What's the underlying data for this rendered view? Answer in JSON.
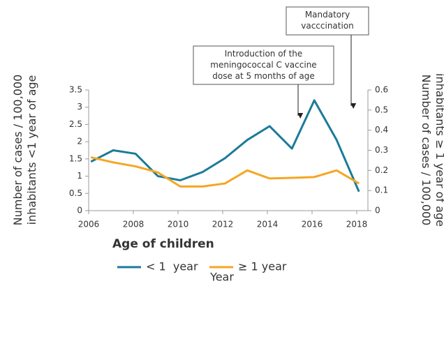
{
  "chart_data": {
    "type": "line",
    "x": [
      2006.1,
      2007.1,
      2008.1,
      2009.1,
      2010.1,
      2011.1,
      2012.1,
      2013.1,
      2014.1,
      2015.1,
      2016.1,
      2017.1,
      2018.1
    ],
    "series": [
      {
        "name": "< 1  year",
        "color": "#1b7b98",
        "values": [
          1.42,
          1.75,
          1.65,
          1.0,
          0.88,
          1.12,
          1.52,
          2.05,
          2.45,
          1.8,
          3.2,
          2.05,
          0.55
        ]
      },
      {
        "name": "≥ 1 year",
        "color": "#f5a623",
        "axis": "y2",
        "values": [
          0.265,
          0.24,
          0.22,
          0.19,
          0.12,
          0.12,
          0.135,
          0.2,
          0.16,
          0.163,
          0.167,
          0.2,
          0.135
        ]
      }
    ],
    "xlim": [
      2006,
      2018.5
    ],
    "xticks": [
      2006,
      2008,
      2010,
      2012,
      2014,
      2016,
      2018
    ],
    "ylim": [
      0,
      3.5
    ],
    "yticks": [
      0,
      0.5,
      1,
      1.5,
      2,
      2.5,
      3,
      3.5
    ],
    "y2lim": [
      0,
      0.6
    ],
    "y2ticks": [
      0,
      0.1,
      0.2,
      0.3,
      0.4,
      0.5,
      0.6
    ],
    "xlabel": "Year",
    "ylabel": [
      "Number of cases / 100,000",
      "inhabitants <1 year of age"
    ],
    "y2label": [
      "Number of cases / 100,000",
      "inhabitants ≥ 1 year of age"
    ],
    "legend_title": "Age of children",
    "annotations": [
      {
        "text": [
          "Mandatory",
          "vacccination"
        ]
      },
      {
        "text": [
          "Introduction of the",
          "meningococcal C vaccine",
          "dose at 5 months of age"
        ]
      }
    ]
  }
}
